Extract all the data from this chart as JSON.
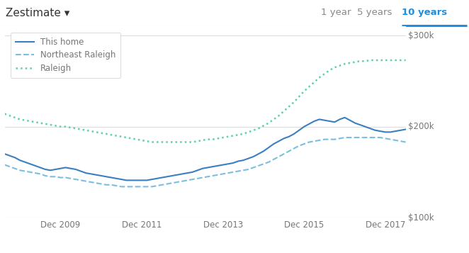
{
  "title_left": "Zestimate ▾",
  "title_right_options": [
    "1 year",
    "5 years",
    "10 years"
  ],
  "title_right_active": "10 years",
  "legend": [
    "This home",
    "Northeast Raleigh",
    "Raleigh"
  ],
  "line_colors": [
    "#3a7fc1",
    "#7bbfe0",
    "#5ecfb0"
  ],
  "ylim": [
    100000,
    310000
  ],
  "yticks": [
    100000,
    200000,
    300000
  ],
  "ytick_labels": [
    "$100k",
    "$200k",
    "$300k"
  ],
  "xtick_labels": [
    "Dec 2009",
    "Dec 2011",
    "Dec 2013",
    "Dec 2015",
    "Dec 2017"
  ],
  "background_color": "#ffffff",
  "header_bg": "#f2f2f2",
  "grid_color": "#dddddd",
  "text_color": "#767676",
  "active_color": "#1a8fe3",
  "this_home": [
    170000,
    168000,
    166000,
    163000,
    161000,
    159000,
    157000,
    155000,
    153000,
    152000,
    153000,
    154000,
    155000,
    154000,
    153000,
    151000,
    149000,
    148000,
    147000,
    146000,
    145000,
    144000,
    143000,
    142000,
    141000,
    141000,
    141000,
    141000,
    141000,
    142000,
    143000,
    144000,
    145000,
    146000,
    147000,
    148000,
    149000,
    150000,
    152000,
    154000,
    155000,
    156000,
    157000,
    158000,
    159000,
    160000,
    162000,
    163000,
    165000,
    167000,
    170000,
    173000,
    177000,
    181000,
    184000,
    187000,
    189000,
    192000,
    196000,
    200000,
    203000,
    206000,
    208000,
    207000,
    206000,
    205000,
    208000,
    210000,
    207000,
    204000,
    202000,
    200000,
    198000,
    196000,
    195000,
    194000,
    194000,
    195000,
    196000,
    197000
  ],
  "northeast_raleigh": [
    158000,
    156000,
    154000,
    152000,
    151000,
    150000,
    149000,
    148000,
    146000,
    145000,
    145000,
    144000,
    144000,
    143000,
    142000,
    141000,
    140000,
    139000,
    138000,
    137000,
    136000,
    136000,
    135000,
    134000,
    134000,
    134000,
    134000,
    134000,
    134000,
    134000,
    135000,
    136000,
    137000,
    138000,
    139000,
    140000,
    141000,
    142000,
    143000,
    144000,
    145000,
    146000,
    147000,
    148000,
    149000,
    150000,
    151000,
    152000,
    153000,
    155000,
    157000,
    159000,
    161000,
    164000,
    167000,
    170000,
    173000,
    176000,
    179000,
    181000,
    183000,
    184000,
    185000,
    186000,
    186000,
    186000,
    187000,
    188000,
    188000,
    188000,
    188000,
    188000,
    188000,
    188000,
    188000,
    187000,
    186000,
    185000,
    184000,
    183000
  ],
  "raleigh": [
    214000,
    212000,
    210000,
    208000,
    207000,
    206000,
    205000,
    204000,
    203000,
    202000,
    201000,
    200000,
    200000,
    199000,
    198000,
    197000,
    196000,
    195000,
    194000,
    193000,
    192000,
    191000,
    190000,
    189000,
    188000,
    187000,
    186000,
    185000,
    184000,
    183000,
    183000,
    183000,
    183000,
    183000,
    183000,
    183000,
    183000,
    183000,
    184000,
    185000,
    186000,
    186000,
    187000,
    188000,
    189000,
    190000,
    191000,
    192000,
    194000,
    196000,
    198000,
    201000,
    204000,
    208000,
    212000,
    217000,
    222000,
    227000,
    233000,
    239000,
    244000,
    249000,
    254000,
    258000,
    262000,
    265000,
    267000,
    269000,
    270000,
    271000,
    272000,
    272000,
    273000,
    273000,
    273000,
    273000,
    273000,
    273000,
    273000,
    273000
  ]
}
